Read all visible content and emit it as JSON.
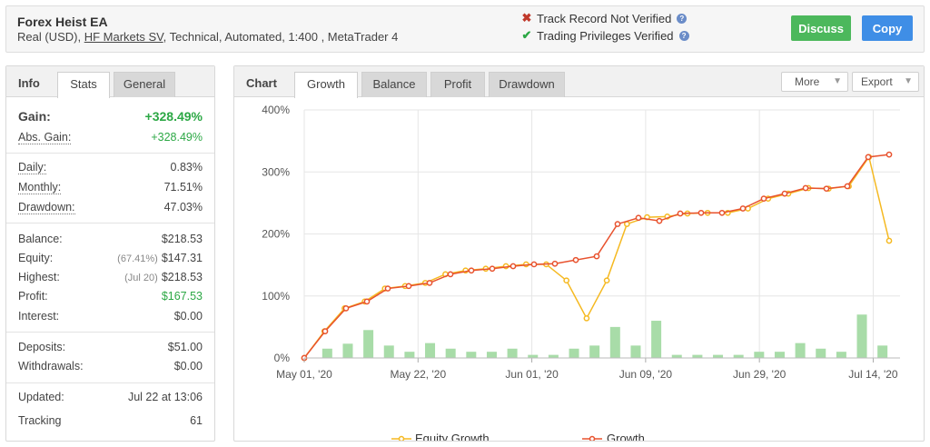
{
  "header": {
    "title": "Forex Heist EA",
    "details_prefix": "Real (USD),",
    "broker_link": "HF Markets SV",
    "details_suffix": ", Technical, Automated, 1:400 , MetaTrader 4",
    "track_record": "Track Record Not Verified",
    "trading_privileges": "Trading Privileges Verified",
    "discuss_label": "Discuss",
    "copy_label": "Copy",
    "colors": {
      "discuss": "#4cb85c",
      "copy": "#3f8ee6",
      "not_verified": "#c0392b",
      "verified": "#2ca845"
    }
  },
  "info": {
    "title": "Info",
    "tabs": [
      "Stats",
      "General"
    ],
    "active_tab": "Stats",
    "gain_label": "Gain:",
    "gain_value": "+328.49%",
    "abs_gain_label": "Abs. Gain:",
    "abs_gain_value": "+328.49%",
    "daily_label": "Daily:",
    "daily_value": "0.83%",
    "monthly_label": "Monthly:",
    "monthly_value": "71.51%",
    "drawdown_label": "Drawdown:",
    "drawdown_value": "47.03%",
    "balance_label": "Balance:",
    "balance_value": "$218.53",
    "equity_label": "Equity:",
    "equity_pct": "(67.41%)",
    "equity_value": "$147.31",
    "highest_label": "Highest:",
    "highest_date": "(Jul 20)",
    "highest_value": "$218.53",
    "profit_label": "Profit:",
    "profit_value": "$167.53",
    "interest_label": "Interest:",
    "interest_value": "$0.00",
    "deposits_label": "Deposits:",
    "deposits_value": "$51.00",
    "withdrawals_label": "Withdrawals:",
    "withdrawals_value": "$0.00",
    "updated_label": "Updated:",
    "updated_value": "Jul 22 at 13:06",
    "tracking_label": "Tracking",
    "tracking_value": "61"
  },
  "chart_panel": {
    "title": "Chart",
    "tabs": [
      "Growth",
      "Balance",
      "Profit",
      "Drawdown"
    ],
    "active_tab": "Growth",
    "more_label": "More",
    "export_label": "Export"
  },
  "chart_data": {
    "type": "line",
    "x_tick_labels": [
      "May 01, '20",
      "May 22, '20",
      "Jun 01, '20",
      "Jun 09, '20",
      "Jun 29, '20",
      "Jul 14, '20"
    ],
    "y_tick_labels": [
      "0%",
      "100%",
      "200%",
      "300%",
      "400%"
    ],
    "ylim": [
      0,
      400
    ],
    "grid": true,
    "legend_position": "bottom",
    "series": [
      {
        "name": "Equity Growth",
        "color": "#f5b921",
        "values": [
          0,
          43,
          80,
          91,
          112,
          116,
          121,
          135,
          141,
          144,
          148,
          151,
          151,
          125,
          64,
          125,
          216,
          227,
          228,
          233,
          234,
          234,
          241,
          257,
          265,
          274,
          273,
          277,
          324,
          189
        ]
      },
      {
        "name": "Growth",
        "color": "#e8522e",
        "values": [
          0,
          43,
          80,
          91,
          112,
          116,
          121,
          135,
          141,
          144,
          148,
          151,
          152,
          158,
          164,
          216,
          226,
          221,
          233,
          234,
          234,
          241,
          257,
          265,
          274,
          273,
          277,
          324,
          328
        ]
      },
      {
        "name": "bars",
        "color": "#a8dca8",
        "values": [
          15,
          23,
          45,
          20,
          10,
          24,
          15,
          10,
          10,
          15,
          5,
          5,
          15,
          20,
          50,
          20,
          60,
          5,
          5,
          5,
          5,
          10,
          10,
          24,
          15,
          10,
          70,
          20
        ]
      }
    ]
  }
}
